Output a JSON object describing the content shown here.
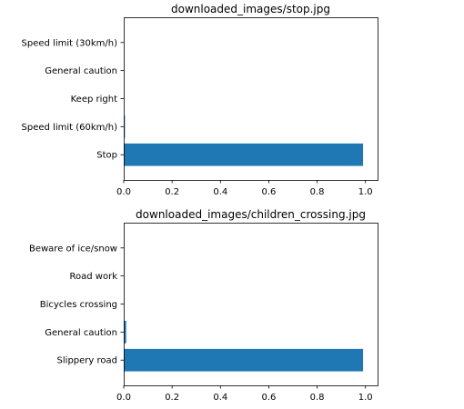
{
  "bar_color": "#1f77b4",
  "chart_data": [
    {
      "type": "bar",
      "orientation": "horizontal",
      "title": "downloaded_images/stop.jpg",
      "categories": [
        "Stop",
        "Speed limit (60km/h)",
        "Keep right",
        "General caution",
        "Speed limit (30km/h)"
      ],
      "values": [
        0.99,
        0.005,
        0.0,
        0.0,
        0.0
      ],
      "xlim": [
        0,
        1.05
      ],
      "xticks": [
        "0.0",
        "0.2",
        "0.4",
        "0.6",
        "0.8",
        "1.0"
      ],
      "xlabel": "",
      "ylabel": "",
      "grid": false
    },
    {
      "type": "bar",
      "orientation": "horizontal",
      "title": "downloaded_images/children_crossing.jpg",
      "categories": [
        "Slippery road",
        "General caution",
        "Bicycles crossing",
        "Road work",
        "Beware of ice/snow"
      ],
      "values": [
        0.99,
        0.01,
        0.0,
        0.0,
        0.0
      ],
      "xlim": [
        0,
        1.05
      ],
      "xticks": [
        "0.0",
        "0.2",
        "0.4",
        "0.6",
        "0.8",
        "1.0"
      ],
      "xlabel": "",
      "ylabel": "",
      "grid": false
    }
  ]
}
